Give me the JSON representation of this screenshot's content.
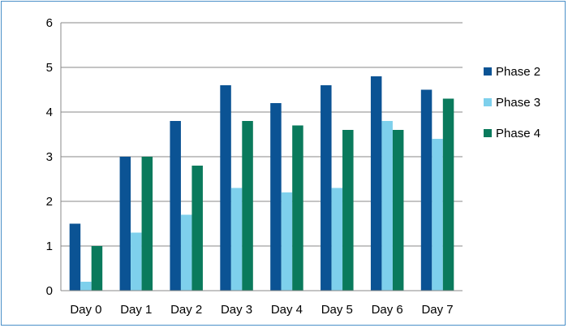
{
  "chart_data": {
    "type": "bar",
    "title": "",
    "xlabel": "",
    "ylabel": "",
    "categories": [
      "Day 0",
      "Day 1",
      "Day 2",
      "Day 3",
      "Day 4",
      "Day 5",
      "Day 6",
      "Day 7"
    ],
    "ylim": [
      0,
      6
    ],
    "yticks": [
      0,
      1,
      2,
      3,
      4,
      5,
      6
    ],
    "grid": true,
    "legend_position": "right",
    "series": [
      {
        "name": "Phase 2",
        "color": "#0b5394",
        "values": [
          1.5,
          3.0,
          3.8,
          4.6,
          4.2,
          4.6,
          4.8,
          4.5
        ]
      },
      {
        "name": "Phase 3",
        "color": "#7ed0ec",
        "values": [
          0.2,
          1.3,
          1.7,
          2.3,
          2.2,
          2.3,
          3.8,
          3.4
        ]
      },
      {
        "name": "Phase 4",
        "color": "#0a7a5c",
        "values": [
          1.0,
          3.0,
          2.8,
          3.8,
          3.7,
          3.6,
          3.6,
          4.3
        ]
      }
    ]
  }
}
